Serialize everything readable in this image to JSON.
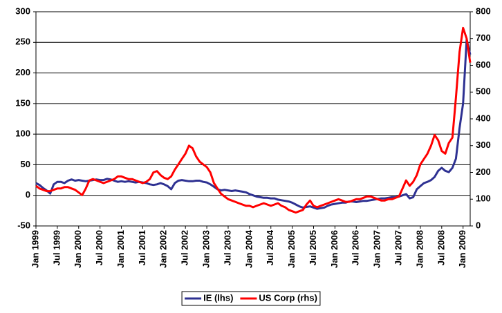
{
  "chart_data": {
    "type": "line",
    "categories": [
      "Jan 1999",
      null,
      null,
      null,
      null,
      null,
      "Jul 1999",
      null,
      null,
      null,
      null,
      null,
      "Jan 2000",
      null,
      null,
      null,
      null,
      null,
      "Jul 2000",
      null,
      null,
      null,
      null,
      null,
      "Jan 2001",
      null,
      null,
      null,
      null,
      null,
      "Jul 2001",
      null,
      null,
      null,
      null,
      null,
      "Jan 2002",
      null,
      null,
      null,
      null,
      null,
      "Jul 2002",
      null,
      null,
      null,
      null,
      null,
      "Jan 2003",
      null,
      null,
      null,
      null,
      null,
      "Jul 2003",
      null,
      null,
      null,
      null,
      null,
      "Jan 2004",
      null,
      null,
      null,
      null,
      null,
      "Jul 2004",
      null,
      null,
      null,
      null,
      null,
      "Jan 2005",
      null,
      null,
      null,
      null,
      null,
      "Jul 2005",
      null,
      null,
      null,
      null,
      null,
      "Jan 2006",
      null,
      null,
      null,
      null,
      null,
      "Jul 2006",
      null,
      null,
      null,
      null,
      null,
      "Jan 2007",
      null,
      null,
      null,
      null,
      null,
      "Jul 2007",
      null,
      null,
      null,
      null,
      null,
      "Jan 2008",
      null,
      null,
      null,
      null,
      null,
      "Jul 2008",
      null,
      null,
      null,
      null,
      null,
      "Jan 2009",
      null,
      null
    ],
    "series": [
      {
        "name": "IE (lhs)",
        "color": "#2e3192",
        "values": [
          20,
          17,
          12,
          8,
          3,
          18,
          22,
          22,
          20,
          24,
          26,
          24,
          25,
          24,
          23,
          24,
          25,
          26,
          25,
          25,
          27,
          26,
          24,
          22,
          23,
          22,
          23,
          22,
          21,
          22,
          21,
          20,
          18,
          17,
          18,
          20,
          18,
          15,
          10,
          20,
          24,
          25,
          24,
          23,
          23,
          24,
          24,
          22,
          21,
          18,
          14,
          10,
          8,
          9,
          8,
          7,
          8,
          7,
          6,
          5,
          2,
          0,
          -2,
          -3,
          -4,
          -4,
          -5,
          -5,
          -7,
          -8,
          -9,
          -10,
          -12,
          -15,
          -18,
          -20,
          -19,
          -18,
          -20,
          -22,
          -21,
          -20,
          -17,
          -15,
          -14,
          -13,
          -12,
          -12,
          -10,
          -10,
          -11,
          -10,
          -9,
          -9,
          -8,
          -7,
          -6,
          -5,
          -5,
          -4,
          -3,
          -3,
          -2,
          0,
          2,
          -5,
          -3,
          10,
          15,
          20,
          22,
          25,
          30,
          40,
          45,
          40,
          38,
          45,
          60,
          110,
          150,
          255,
          230
        ]
      },
      {
        "name": "US Corp (rhs)",
        "color": "#ff0000",
        "axis": "y2",
        "values": [
          150,
          140,
          135,
          130,
          130,
          135,
          140,
          140,
          145,
          145,
          140,
          135,
          125,
          115,
          140,
          170,
          175,
          170,
          165,
          160,
          165,
          170,
          175,
          185,
          185,
          180,
          175,
          175,
          170,
          165,
          160,
          165,
          175,
          200,
          205,
          190,
          180,
          175,
          185,
          210,
          230,
          250,
          270,
          300,
          290,
          260,
          240,
          230,
          220,
          200,
          160,
          140,
          120,
          110,
          100,
          95,
          90,
          85,
          80,
          75,
          75,
          70,
          75,
          80,
          85,
          80,
          75,
          80,
          85,
          75,
          70,
          60,
          55,
          50,
          55,
          60,
          80,
          95,
          75,
          70,
          75,
          80,
          85,
          90,
          95,
          100,
          95,
          90,
          90,
          95,
          100,
          100,
          105,
          110,
          110,
          105,
          100,
          95,
          95,
          100,
          100,
          105,
          110,
          140,
          170,
          150,
          165,
          190,
          230,
          250,
          270,
          300,
          340,
          320,
          280,
          270,
          310,
          330,
          480,
          650,
          740,
          700,
          610
        ]
      }
    ],
    "ylim": [
      -50,
      300
    ],
    "yticks": [
      -50,
      0,
      50,
      100,
      150,
      200,
      250,
      300
    ],
    "y2lim": [
      0,
      800
    ],
    "y2ticks": [
      0,
      100,
      200,
      300,
      400,
      500,
      600,
      700,
      800
    ],
    "grid": true,
    "legend": "bottom"
  }
}
